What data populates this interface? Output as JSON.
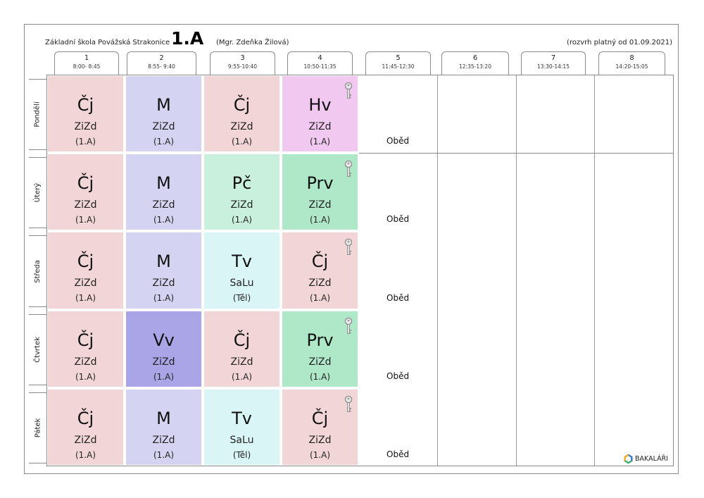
{
  "header": {
    "school": "Základní škola Povážská Strakonice",
    "class_name": "1.A",
    "teacher": "(Mgr. Zdeňka Žilová)",
    "validity": "(rozvrh platný od 01.09.2021)"
  },
  "periods": [
    {
      "num": "1",
      "time": "8:00- 8:45"
    },
    {
      "num": "2",
      "time": "8:55- 9:40"
    },
    {
      "num": "3",
      "time": "9:55-10:40"
    },
    {
      "num": "4",
      "time": "10:50-11:35"
    },
    {
      "num": "5",
      "time": "11:45-12:30"
    },
    {
      "num": "6",
      "time": "12:35-13:20"
    },
    {
      "num": "7",
      "time": "13:30-14:15"
    },
    {
      "num": "8",
      "time": "14:20-15:05"
    }
  ],
  "days": [
    {
      "name": "Pondělí",
      "lunch": "Oběd",
      "lessons": [
        {
          "subject": "Čj",
          "teacher": "ZiZd",
          "group": "(1.A)",
          "color": "#f2d5d6",
          "key": false
        },
        {
          "subject": "M",
          "teacher": "ZiZd",
          "group": "(1.A)",
          "color": "#d4d4f2",
          "key": false
        },
        {
          "subject": "Čj",
          "teacher": "ZiZd",
          "group": "(1.A)",
          "color": "#f2d5d6",
          "key": false
        },
        {
          "subject": "Hv",
          "teacher": "ZiZd",
          "group": "(1.A)",
          "color": "#f0c8f0",
          "key": true
        }
      ]
    },
    {
      "name": "Úterý",
      "lunch": "Oběd",
      "lessons": [
        {
          "subject": "Čj",
          "teacher": "ZiZd",
          "group": "(1.A)",
          "color": "#f2d5d6",
          "key": false
        },
        {
          "subject": "M",
          "teacher": "ZiZd",
          "group": "(1.A)",
          "color": "#d4d4f2",
          "key": false
        },
        {
          "subject": "Pč",
          "teacher": "ZiZd",
          "group": "(1.A)",
          "color": "#c9f0dc",
          "key": false
        },
        {
          "subject": "Prv",
          "teacher": "ZiZd",
          "group": "(1.A)",
          "color": "#aee8c8",
          "key": true
        }
      ]
    },
    {
      "name": "Středa",
      "lunch": "Oběd",
      "lessons": [
        {
          "subject": "Čj",
          "teacher": "ZiZd",
          "group": "(1.A)",
          "color": "#f2d5d6",
          "key": false
        },
        {
          "subject": "M",
          "teacher": "ZiZd",
          "group": "(1.A)",
          "color": "#d4d4f2",
          "key": false
        },
        {
          "subject": "Tv",
          "teacher": "SaLu",
          "group": "(Těl)",
          "color": "#d9f5f5",
          "key": false
        },
        {
          "subject": "Čj",
          "teacher": "ZiZd",
          "group": "(1.A)",
          "color": "#f2d5d6",
          "key": true
        }
      ]
    },
    {
      "name": "Čtvrtek",
      "lunch": "Oběd",
      "lessons": [
        {
          "subject": "Čj",
          "teacher": "ZiZd",
          "group": "(1.A)",
          "color": "#f2d5d6",
          "key": false
        },
        {
          "subject": "Vv",
          "teacher": "ZiZd",
          "group": "(1.A)",
          "color": "#aaa5e6",
          "key": false
        },
        {
          "subject": "Čj",
          "teacher": "ZiZd",
          "group": "(1.A)",
          "color": "#f2d5d6",
          "key": false
        },
        {
          "subject": "Prv",
          "teacher": "ZiZd",
          "group": "(1.A)",
          "color": "#aee8c8",
          "key": true
        }
      ]
    },
    {
      "name": "Pátek",
      "lunch": "Oběd",
      "lessons": [
        {
          "subject": "Čj",
          "teacher": "ZiZd",
          "group": "(1.A)",
          "color": "#f2d5d6",
          "key": false
        },
        {
          "subject": "M",
          "teacher": "ZiZd",
          "group": "(1.A)",
          "color": "#d4d4f2",
          "key": false
        },
        {
          "subject": "Tv",
          "teacher": "SaLu",
          "group": "(Těl)",
          "color": "#d9f5f5",
          "key": false
        },
        {
          "subject": "Čj",
          "teacher": "ZiZd",
          "group": "(1.A)",
          "color": "#f2d5d6",
          "key": true
        }
      ]
    }
  ],
  "footer": {
    "brand": "BAKALÁŘI",
    "brand_icon": "bakalari-logo-icon",
    "key_icon": "key-icon"
  }
}
